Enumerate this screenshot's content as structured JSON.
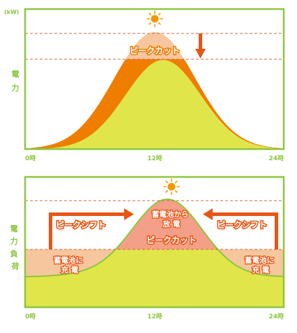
{
  "top_panel": {
    "unit": "(kW)",
    "ylabel": "電力",
    "ticks": [
      "0時",
      "12時",
      "24時"
    ],
    "peak_label": "ピークカット"
  },
  "bottom_panel": {
    "ylabel": "電力負荷",
    "ticks": [
      "0時",
      "12時",
      "24時"
    ],
    "shift_left": "ピークシフト",
    "shift_right": "ピークシフト",
    "discharge_label": [
      "蓄電池から",
      "放 電"
    ],
    "peak_label": "ピークカット",
    "charge_left": [
      "蓄電池に",
      "充 電"
    ],
    "charge_right": [
      "蓄電池に",
      "充 電"
    ]
  },
  "icons": [
    "sun-icon",
    "down-arrow-icon",
    "right-arrow-icon",
    "left-arrow-icon"
  ],
  "colors": {
    "frame": "#8cc63f",
    "yellow_green": "#e0e64a",
    "orange": "#ef7d00",
    "peach": "#f6c69e",
    "salmon": "#f4a088",
    "axis_text": "#8cc63f",
    "dash": "#d9663b",
    "sun": "#f39800"
  }
}
